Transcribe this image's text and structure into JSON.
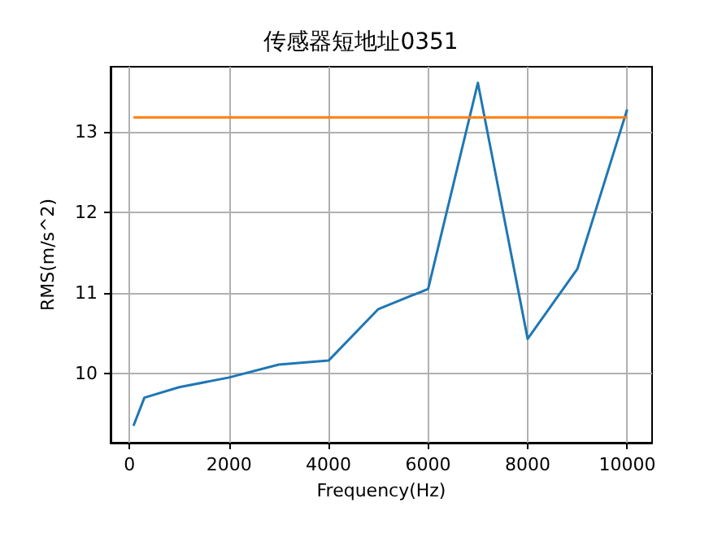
{
  "chart_data": {
    "type": "line",
    "title": "传感器短地址0351",
    "xlabel": "Frequency(Hz)",
    "ylabel": "RMS(m/s^2)",
    "xlim": [
      -380,
      10500
    ],
    "ylim": [
      9.14,
      13.81
    ],
    "xticks": [
      0,
      2000,
      4000,
      6000,
      8000,
      10000
    ],
    "yticks": [
      10,
      11,
      12,
      13
    ],
    "grid": true,
    "marker": "none",
    "line_style": "solid",
    "series": [
      {
        "color": "#1f77b4",
        "x": [
          80,
          300,
          1000,
          2000,
          3000,
          4000,
          5000,
          6000,
          7000,
          8000,
          9000,
          10000
        ],
        "values": [
          9.35,
          9.7,
          9.83,
          9.95,
          10.11,
          10.16,
          10.8,
          11.05,
          13.61,
          10.43,
          11.3,
          13.28
        ]
      },
      {
        "color": "#ff7f0e",
        "x": [
          80,
          10000
        ],
        "values": [
          13.18,
          13.18
        ]
      }
    ]
  }
}
